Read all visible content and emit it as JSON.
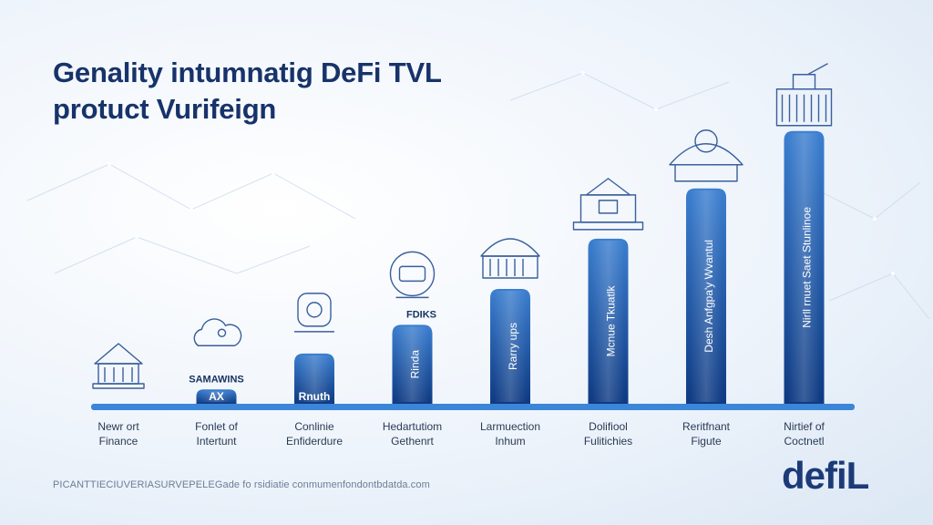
{
  "title": {
    "line1": "Genality intumnatig DeFi TVL",
    "line2": "protuct Vurifeign"
  },
  "footnote": "PICANTTIECIUVERIASURVEPELEGade fo rsidiatie conmumenfondontbdatda.com",
  "logo": "defiL",
  "colors": {
    "bar_top": "#3c7fd0",
    "bar_bottom": "#0f3a82",
    "baseline": "#3b86d8",
    "icon_stroke": "#3a5f9c",
    "text_dark": "#16335f"
  },
  "chart_data": {
    "type": "bar",
    "title": "Genality intumnatig DeFi TVL protuct Vurifeign",
    "categories": [
      [
        "Newr ort",
        "Finance"
      ],
      [
        "Fonlet of",
        "Intertunt"
      ],
      [
        "Conlinie",
        "Enfiderdure"
      ],
      [
        "Hedartutiom",
        "Gethenrt"
      ],
      [
        "Larmuection",
        "Inhum"
      ],
      [
        "Dolifiool",
        "Fulitichies"
      ],
      [
        "Reritfnant",
        "Figute"
      ],
      [
        "Nirtief of",
        "Coctnetl"
      ]
    ],
    "values": [
      0,
      2,
      7,
      11,
      16,
      23,
      30,
      38
    ],
    "ylim": [
      0,
      40
    ],
    "bar_labels": [
      "",
      "AX",
      "Rnuth",
      "Rinda",
      "Rarry ups",
      "Mcnue Tkuatlk",
      "Desh Anfgpa'y Wvantul",
      "Nirll rnuet Saet Stunlinoe"
    ],
    "annotations": [
      "",
      "SAMAWINS",
      "",
      "FDIKS",
      "",
      "",
      "",
      ""
    ],
    "icons": [
      "bank-building-icon",
      "cloud-icon",
      "lock-shield-icon",
      "vault-icon",
      "capitol-building-icon",
      "government-building-icon",
      "temple-dome-icon",
      "skyscraper-city-icon"
    ],
    "grid": false,
    "legend": "none"
  }
}
